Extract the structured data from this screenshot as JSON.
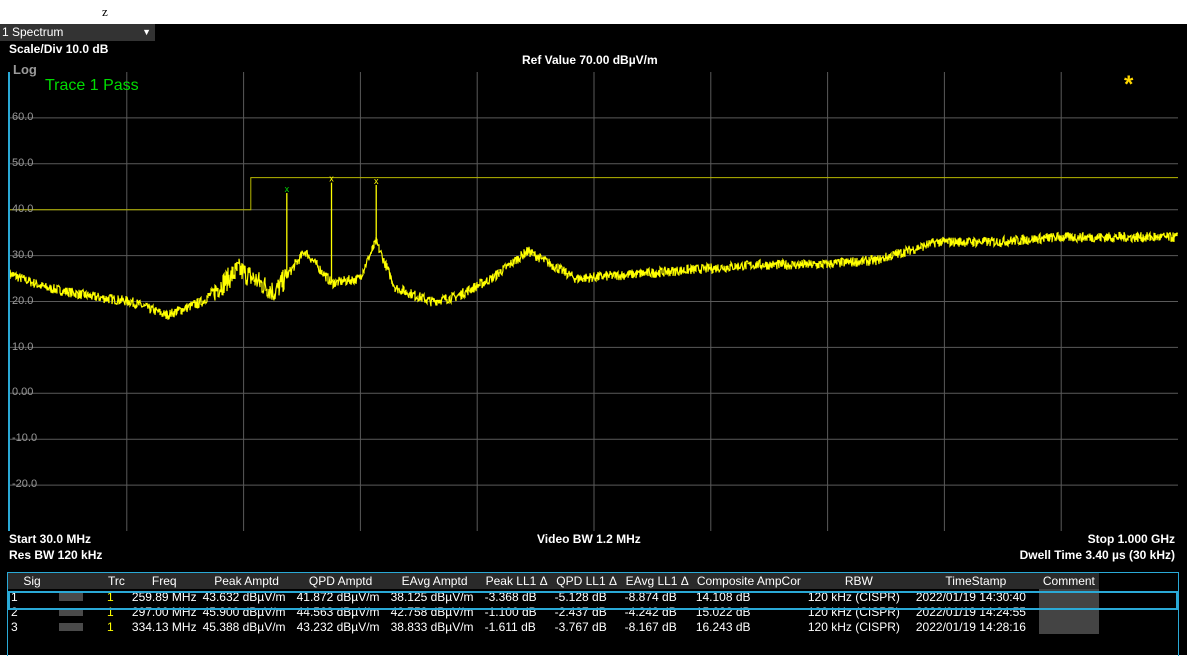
{
  "window": {
    "title_glyph": "z"
  },
  "spectrum": {
    "selector_label": "1 Spectrum",
    "scale_div": "Scale/Div 10.0 dB",
    "ref_value": "Ref Value 70.00 dBµV/m",
    "log_label": "Log",
    "trace_status": "Trace 1 Pass",
    "y_tick_labels": [
      "60.0",
      "50.0",
      "40.0",
      "30.0",
      "20.0",
      "10.0",
      "0.00",
      "-10.0",
      "-20.0"
    ],
    "start_freq": "Start 30.0 MHz",
    "res_bw": "Res BW 120 kHz",
    "video_bw": "Video BW 1.2 MHz",
    "stop_freq": "Stop 1.000 GHz",
    "dwell_time": "Dwell Time 3.40 µs (30 kHz)",
    "colors": {
      "trace": "#ffff00",
      "limit": "#b8b800",
      "pass": "#00dd00",
      "accent": "#2aa9d6"
    }
  },
  "chart_data": {
    "type": "line",
    "xlabel": "",
    "ylabel": "",
    "xlim_mhz": [
      30,
      1000
    ],
    "ylim": [
      -30,
      70
    ],
    "grid": true,
    "series": [
      {
        "x_mhz": [
          30,
          60,
          100,
          130,
          160,
          190,
          220,
          250,
          275,
          297,
          320,
          334,
          350,
          380,
          400,
          430,
          460,
          500,
          550,
          600,
          650,
          700,
          750,
          800,
          850,
          900,
          950,
          1000
        ],
        "values": [
          26,
          23,
          21,
          20,
          17,
          20,
          27,
          22,
          31,
          24,
          25,
          33,
          23,
          20,
          21,
          25,
          31,
          25,
          26,
          27,
          28,
          28,
          29,
          33,
          33,
          34,
          34,
          34
        ]
      }
    ],
    "limit_line": {
      "x_mhz": [
        30,
        230,
        230,
        1000
      ],
      "values": [
        40,
        40,
        47,
        47
      ]
    },
    "markers": [
      {
        "x_mhz": 259.89,
        "value": 43.632
      },
      {
        "x_mhz": 297.0,
        "value": 45.9
      },
      {
        "x_mhz": 334.13,
        "value": 45.388
      }
    ]
  },
  "table": {
    "headers": [
      "Sig",
      "Trc",
      "Freq",
      "Peak Amptd",
      "QPD Amptd",
      "EAvg Amptd",
      "Peak LL1 Δ",
      "QPD LL1 Δ",
      "EAvg LL1 Δ",
      "Composite AmpCor",
      "RBW",
      "TimeStamp",
      "Comment"
    ],
    "rows": [
      {
        "sig": "1",
        "trc": "1",
        "freq": "259.89 MHz",
        "peak": "43.632 dBµV/m",
        "qpd": "41.872 dBµV/m",
        "eavg": "38.125 dBµV/m",
        "peak_ll1": "-3.368 dB",
        "qpd_ll1": "-5.128 dB",
        "eavg_ll1": "-8.874 dB",
        "ampcor": "14.108 dB",
        "rbw": "120 kHz (CISPR)",
        "timestamp": "2022/01/19 14:30:40",
        "comment": ""
      },
      {
        "sig": "2",
        "trc": "1",
        "freq": "297.00 MHz",
        "peak": "45.900 dBµV/m",
        "qpd": "44.563 dBµV/m",
        "eavg": "42.758 dBµV/m",
        "peak_ll1": "-1.100 dB",
        "qpd_ll1": "-2.437 dB",
        "eavg_ll1": "-4.242 dB",
        "ampcor": "15.022 dB",
        "rbw": "120 kHz (CISPR)",
        "timestamp": "2022/01/19 14:24:55",
        "comment": ""
      },
      {
        "sig": "3",
        "trc": "1",
        "freq": "334.13 MHz",
        "peak": "45.388 dBµV/m",
        "qpd": "43.232 dBµV/m",
        "eavg": "38.833 dBµV/m",
        "peak_ll1": "-1.611 dB",
        "qpd_ll1": "-3.767 dB",
        "eavg_ll1": "-8.167 dB",
        "ampcor": "16.243 dB",
        "rbw": "120 kHz (CISPR)",
        "timestamp": "2022/01/19 14:28:16",
        "comment": ""
      }
    ]
  }
}
